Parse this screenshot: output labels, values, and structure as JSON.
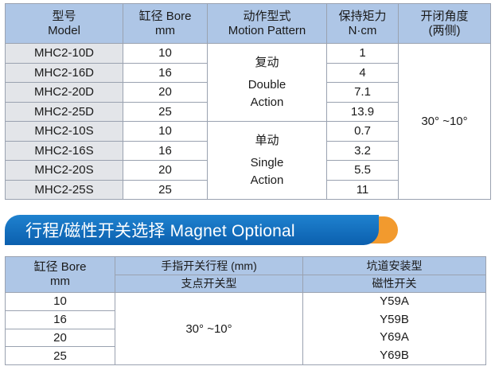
{
  "spec_table": {
    "headers": {
      "model": [
        "型号",
        "Model"
      ],
      "bore": [
        "缸径 Bore",
        "mm"
      ],
      "motion": [
        "动作型式",
        "Motion Pattern"
      ],
      "torque": [
        "保持矩力",
        "N·cm"
      ],
      "angle": [
        "开闭角度",
        "(两侧)"
      ]
    },
    "rows": [
      {
        "model": "MHC2-10D",
        "bore": "10",
        "torque": "1"
      },
      {
        "model": "MHC2-16D",
        "bore": "16",
        "torque": "4"
      },
      {
        "model": "MHC2-20D",
        "bore": "20",
        "torque": "7.1"
      },
      {
        "model": "MHC2-25D",
        "bore": "25",
        "torque": "13.9"
      },
      {
        "model": "MHC2-10S",
        "bore": "10",
        "torque": "0.7"
      },
      {
        "model": "MHC2-16S",
        "bore": "16",
        "torque": "3.2"
      },
      {
        "model": "MHC2-20S",
        "bore": "20",
        "torque": "5.5"
      },
      {
        "model": "MHC2-25S",
        "bore": "25",
        "torque": "11"
      }
    ],
    "double_action": {
      "cn": "复动",
      "en_line1": "Double",
      "en_line2": "Action"
    },
    "single_action": {
      "cn": "单动",
      "en_line1": "Single",
      "en_line2": "Action"
    },
    "angle_value": "30° ~10°"
  },
  "banner": {
    "title": "行程/磁性开关选择 Magnet Optional",
    "blue_color": "#0b6dbd",
    "orange_color": "#f29a2e"
  },
  "magnet_table": {
    "headers": {
      "bore": [
        "缸径 Bore",
        "mm"
      ],
      "finger_stroke": "手指开关行程 (mm)",
      "contact_type": "支点开关型",
      "groove_mount": "坑道安装型",
      "magnetic_switch": "磁性开关"
    },
    "bores": [
      "10",
      "16",
      "20",
      "25"
    ],
    "angle_value": "30° ~10°",
    "switch_models": [
      "Y59A",
      "Y59B",
      "Y69A",
      "Y69B"
    ]
  },
  "colors": {
    "header_bg": "#aec6e6",
    "model_cell_bg": "#e3e5e9",
    "border": "#9aa2b0"
  }
}
